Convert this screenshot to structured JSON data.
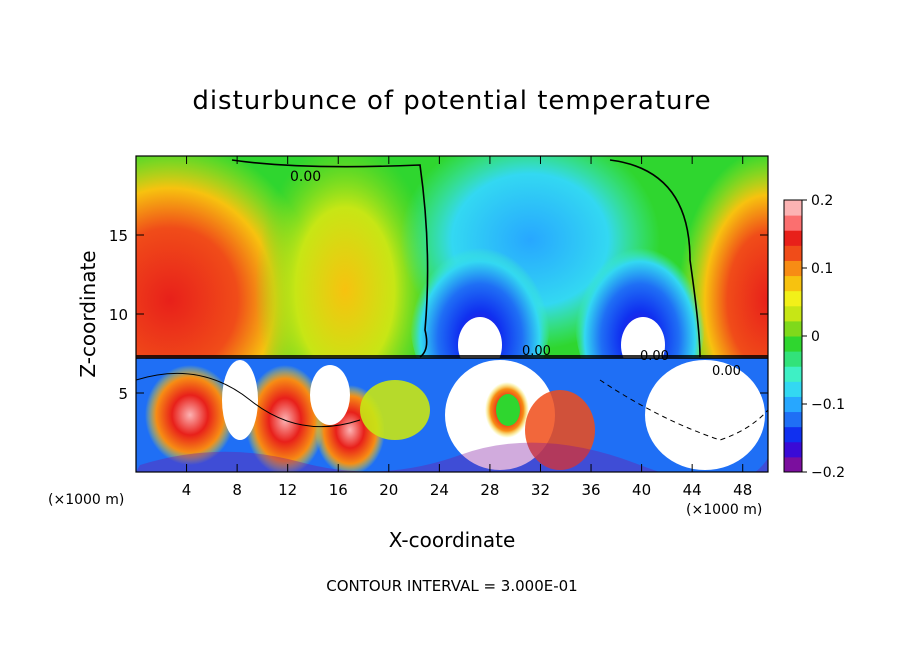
{
  "chart_data": {
    "type": "heatmap",
    "title": "disturbunce of potential temperature",
    "xlabel": "X-coordinate",
    "ylabel": "Z-coordinate",
    "x_unit": "(×1000 m)",
    "xlim": [
      0,
      50
    ],
    "ylim": [
      0,
      20
    ],
    "x_ticks": [
      "4",
      "8",
      "12",
      "16",
      "20",
      "24",
      "28",
      "32",
      "36",
      "40",
      "44",
      "48"
    ],
    "y_ticks": [
      "5",
      "10",
      "15"
    ],
    "x_tick_values": [
      4,
      8,
      12,
      16,
      20,
      24,
      28,
      32,
      36,
      40,
      44,
      48
    ],
    "y_tick_values": [
      5,
      10,
      15
    ],
    "colorbar": {
      "min": -0.2,
      "max": 0.2,
      "tick_values": [
        0.2,
        0.1,
        0,
        -0.1,
        -0.2
      ],
      "tick_labels": [
        "0.2",
        "0.1",
        "0",
        "−0.1",
        "−0.2"
      ],
      "colors": [
        "#7b0f9e",
        "#3a0bd6",
        "#1030f0",
        "#1f6ff5",
        "#27a7ff",
        "#33d8f2",
        "#3ef0c5",
        "#32e27a",
        "#2fd62f",
        "#7fd91b",
        "#c7e615",
        "#f2f019",
        "#f7c20f",
        "#f78c14",
        "#f04c19",
        "#e8201a",
        "#fb6f6f",
        "#fcb3b3"
      ]
    },
    "contour_labels": [
      "0.00",
      "0.00",
      "0.00",
      "0.00"
    ],
    "contour_interval": "CONTOUR INTERVAL = 3.000E-01"
  }
}
